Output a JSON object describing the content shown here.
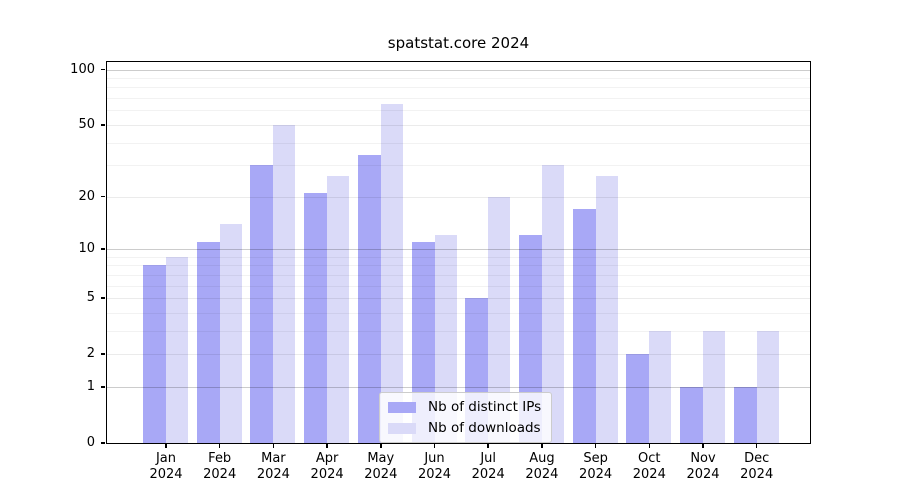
{
  "title": "spatstat.core 2024",
  "chart_data": {
    "type": "bar",
    "title": "spatstat.core 2024",
    "categories": [
      "Jan",
      "Feb",
      "Mar",
      "Apr",
      "May",
      "Jun",
      "Jul",
      "Aug",
      "Sep",
      "Oct",
      "Nov",
      "Dec"
    ],
    "year_suffix": "2024",
    "series": [
      {
        "name": "Nb of distinct IPs",
        "color": "#a8a8f6",
        "values": [
          8,
          11,
          30,
          21,
          34,
          11,
          5,
          12,
          17,
          2,
          1,
          1
        ]
      },
      {
        "name": "Nb of downloads",
        "color": "#dadaf8",
        "values": [
          9,
          14,
          50,
          26,
          65,
          12,
          20,
          30,
          26,
          3,
          3,
          3
        ]
      }
    ],
    "yscale": "log1p",
    "ylim": [
      0,
      110
    ],
    "yticks": [
      0,
      1,
      2,
      5,
      10,
      20,
      50,
      100
    ],
    "decade_gridlines": [
      1,
      10,
      100
    ],
    "mid_gridlines": [
      2,
      5,
      20,
      50
    ],
    "minor_gridlines": [
      3,
      4,
      6,
      7,
      8,
      9,
      30,
      40,
      60,
      70,
      80,
      90
    ],
    "grid": true,
    "legend_position": "bottom-center",
    "xlabel": "",
    "ylabel": ""
  }
}
